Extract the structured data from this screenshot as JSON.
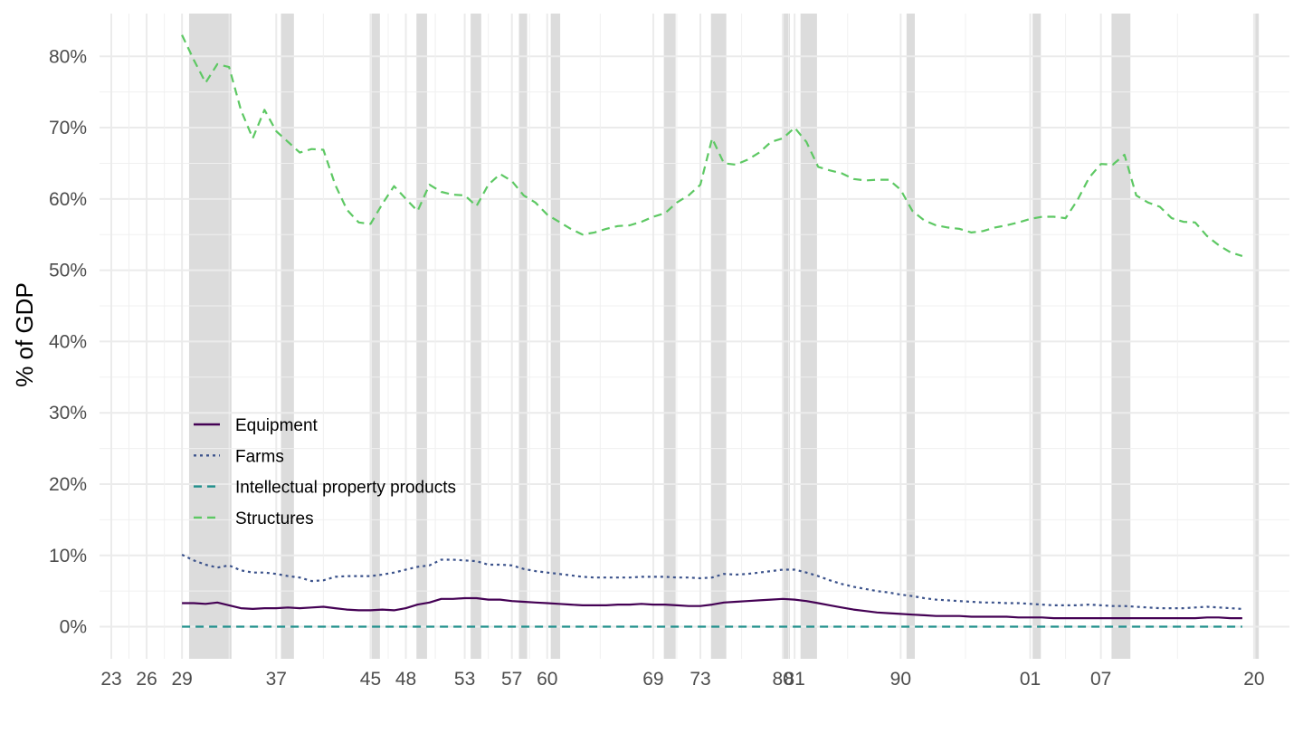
{
  "chart_data": {
    "type": "line",
    "title": "",
    "xlabel": "",
    "ylabel": "% of GDP",
    "xlim": [
      1922,
      2023
    ],
    "ylim": [
      -4.5,
      86
    ],
    "y_ticks": [
      0,
      10,
      20,
      30,
      40,
      50,
      60,
      70,
      80
    ],
    "y_tick_labels": [
      "0%",
      "10%",
      "20%",
      "30%",
      "40%",
      "50%",
      "60%",
      "70%",
      "80%"
    ],
    "x_ticks": [
      1923,
      1926,
      1929,
      1937,
      1945,
      1948,
      1953,
      1957,
      1960,
      1969,
      1973,
      1980,
      1981,
      1990,
      2001,
      2007,
      2020
    ],
    "x_tick_labels": [
      "23",
      "26",
      "29",
      "37",
      "45",
      "48",
      "53",
      "57",
      "60",
      "69",
      "73",
      "80",
      "81",
      "90",
      "01",
      "07",
      "20"
    ],
    "grid": true,
    "legend_position": "inside-bottom-left",
    "recessions": [
      [
        1929.6,
        1933.2
      ],
      [
        1937.4,
        1938.5
      ],
      [
        1945.1,
        1945.8
      ],
      [
        1948.9,
        1949.8
      ],
      [
        1953.5,
        1954.4
      ],
      [
        1957.6,
        1958.3
      ],
      [
        1960.3,
        1961.1
      ],
      [
        1969.9,
        1970.9
      ],
      [
        1973.9,
        1975.2
      ],
      [
        1980.0,
        1980.6
      ],
      [
        1981.5,
        1982.9
      ],
      [
        1990.5,
        1991.2
      ],
      [
        2001.2,
        2001.9
      ],
      [
        2007.9,
        2009.5
      ],
      [
        2020.1,
        2020.4
      ]
    ],
    "series": [
      {
        "name": "Equipment",
        "color": "#440154",
        "dash": "solid",
        "x": [
          1929,
          1930,
          1931,
          1932,
          1933,
          1934,
          1935,
          1936,
          1937,
          1938,
          1939,
          1940,
          1941,
          1942,
          1943,
          1944,
          1945,
          1946,
          1947,
          1948,
          1949,
          1950,
          1951,
          1952,
          1953,
          1954,
          1955,
          1956,
          1957,
          1958,
          1959,
          1960,
          1961,
          1962,
          1963,
          1964,
          1965,
          1966,
          1967,
          1968,
          1969,
          1970,
          1971,
          1972,
          1973,
          1974,
          1975,
          1976,
          1977,
          1978,
          1979,
          1980,
          1981,
          1982,
          1983,
          1984,
          1985,
          1986,
          1987,
          1988,
          1989,
          1990,
          1991,
          1992,
          1993,
          1994,
          1995,
          1996,
          1997,
          1998,
          1999,
          2000,
          2001,
          2002,
          2003,
          2004,
          2005,
          2006,
          2007,
          2008,
          2009,
          2010,
          2011,
          2012,
          2013,
          2014,
          2015,
          2016,
          2017,
          2018,
          2019
        ],
        "values": [
          3.3,
          3.3,
          3.2,
          3.4,
          3.0,
          2.6,
          2.5,
          2.6,
          2.6,
          2.7,
          2.6,
          2.7,
          2.8,
          2.6,
          2.4,
          2.3,
          2.3,
          2.4,
          2.3,
          2.6,
          3.1,
          3.4,
          3.9,
          3.9,
          4.0,
          4.0,
          3.8,
          3.8,
          3.6,
          3.5,
          3.4,
          3.3,
          3.2,
          3.1,
          3.0,
          3.0,
          3.0,
          3.1,
          3.1,
          3.2,
          3.1,
          3.1,
          3.0,
          2.9,
          2.9,
          3.1,
          3.4,
          3.5,
          3.6,
          3.7,
          3.8,
          3.9,
          3.8,
          3.6,
          3.3,
          3.0,
          2.7,
          2.4,
          2.2,
          2.0,
          1.9,
          1.8,
          1.7,
          1.6,
          1.5,
          1.5,
          1.5,
          1.4,
          1.4,
          1.4,
          1.4,
          1.3,
          1.3,
          1.3,
          1.2,
          1.2,
          1.2,
          1.2,
          1.2,
          1.2,
          1.2,
          1.2,
          1.2,
          1.2,
          1.2,
          1.2,
          1.2,
          1.3,
          1.3,
          1.2,
          1.2
        ]
      },
      {
        "name": "Farms",
        "color": "#3b528b",
        "dash": "dotted",
        "x": [
          1929,
          1930,
          1931,
          1932,
          1933,
          1934,
          1935,
          1936,
          1937,
          1938,
          1939,
          1940,
          1941,
          1942,
          1943,
          1944,
          1945,
          1946,
          1947,
          1948,
          1949,
          1950,
          1951,
          1952,
          1953,
          1954,
          1955,
          1956,
          1957,
          1958,
          1959,
          1960,
          1961,
          1962,
          1963,
          1964,
          1965,
          1966,
          1967,
          1968,
          1969,
          1970,
          1971,
          1972,
          1973,
          1974,
          1975,
          1976,
          1977,
          1978,
          1979,
          1980,
          1981,
          1982,
          1983,
          1984,
          1985,
          1986,
          1987,
          1988,
          1989,
          1990,
          1991,
          1992,
          1993,
          1994,
          1995,
          1996,
          1997,
          1998,
          1999,
          2000,
          2001,
          2002,
          2003,
          2004,
          2005,
          2006,
          2007,
          2008,
          2009,
          2010,
          2011,
          2012,
          2013,
          2014,
          2015,
          2016,
          2017,
          2018,
          2019
        ],
        "values": [
          10.1,
          9.3,
          8.7,
          8.3,
          8.6,
          7.9,
          7.6,
          7.6,
          7.4,
          7.1,
          6.9,
          6.4,
          6.5,
          7.0,
          7.1,
          7.1,
          7.1,
          7.3,
          7.6,
          8.0,
          8.4,
          8.6,
          9.4,
          9.4,
          9.3,
          9.2,
          8.7,
          8.7,
          8.6,
          8.1,
          7.8,
          7.6,
          7.4,
          7.2,
          7.0,
          6.9,
          6.9,
          6.9,
          6.9,
          7.0,
          7.0,
          7.0,
          6.9,
          6.9,
          6.8,
          6.9,
          7.4,
          7.3,
          7.4,
          7.6,
          7.8,
          8.0,
          8.0,
          7.6,
          7.1,
          6.5,
          6.0,
          5.6,
          5.3,
          5.0,
          4.8,
          4.5,
          4.3,
          4.0,
          3.8,
          3.7,
          3.6,
          3.5,
          3.4,
          3.4,
          3.3,
          3.3,
          3.2,
          3.1,
          3.0,
          3.0,
          3.0,
          3.1,
          3.0,
          2.9,
          2.9,
          2.8,
          2.7,
          2.6,
          2.6,
          2.6,
          2.7,
          2.8,
          2.7,
          2.6,
          2.5
        ]
      },
      {
        "name": "Intellectual property products",
        "color": "#21908c",
        "dash": "dashed",
        "x": [
          1929,
          2019
        ],
        "values": [
          0.0,
          0.0
        ]
      },
      {
        "name": "Structures",
        "color": "#5dc863",
        "dash": "dashed",
        "x": [
          1929,
          1930,
          1931,
          1932,
          1933,
          1934,
          1935,
          1936,
          1937,
          1938,
          1939,
          1940,
          1941,
          1942,
          1943,
          1944,
          1945,
          1946,
          1947,
          1948,
          1949,
          1950,
          1951,
          1952,
          1953,
          1954,
          1955,
          1956,
          1957,
          1958,
          1959,
          1960,
          1961,
          1962,
          1963,
          1964,
          1965,
          1966,
          1967,
          1968,
          1969,
          1970,
          1971,
          1972,
          1973,
          1974,
          1975,
          1976,
          1977,
          1978,
          1979,
          1980,
          1981,
          1982,
          1983,
          1984,
          1985,
          1986,
          1987,
          1988,
          1989,
          1990,
          1991,
          1992,
          1993,
          1994,
          1995,
          1996,
          1997,
          1998,
          1999,
          2000,
          2001,
          2002,
          2003,
          2004,
          2005,
          2006,
          2007,
          2008,
          2009,
          2010,
          2011,
          2012,
          2013,
          2014,
          2015,
          2016,
          2017,
          2018,
          2019
        ],
        "values": [
          83.0,
          79.5,
          76.3,
          78.9,
          78.5,
          72.5,
          68.5,
          72.5,
          69.5,
          68.0,
          66.5,
          67.0,
          66.9,
          62.0,
          58.5,
          56.7,
          56.5,
          59.3,
          61.8,
          60.0,
          58.3,
          62.0,
          61.0,
          60.6,
          60.5,
          59.0,
          62.0,
          63.5,
          62.5,
          60.5,
          59.5,
          57.8,
          56.8,
          55.8,
          55.0,
          55.3,
          55.8,
          56.2,
          56.3,
          56.8,
          57.5,
          58.0,
          59.5,
          60.5,
          62.0,
          68.5,
          65.0,
          64.8,
          65.5,
          66.5,
          68.0,
          68.5,
          70.0,
          68.0,
          64.5,
          64.0,
          63.6,
          62.8,
          62.6,
          62.7,
          62.7,
          61.3,
          58.3,
          57.0,
          56.3,
          56.0,
          55.8,
          55.3,
          55.5,
          56.0,
          56.3,
          56.7,
          57.2,
          57.5,
          57.5,
          57.3,
          59.8,
          63.0,
          64.9,
          64.8,
          66.2,
          60.5,
          59.5,
          58.9,
          57.3,
          56.8,
          56.7,
          54.8,
          53.5,
          52.5,
          52.0
        ]
      }
    ]
  }
}
